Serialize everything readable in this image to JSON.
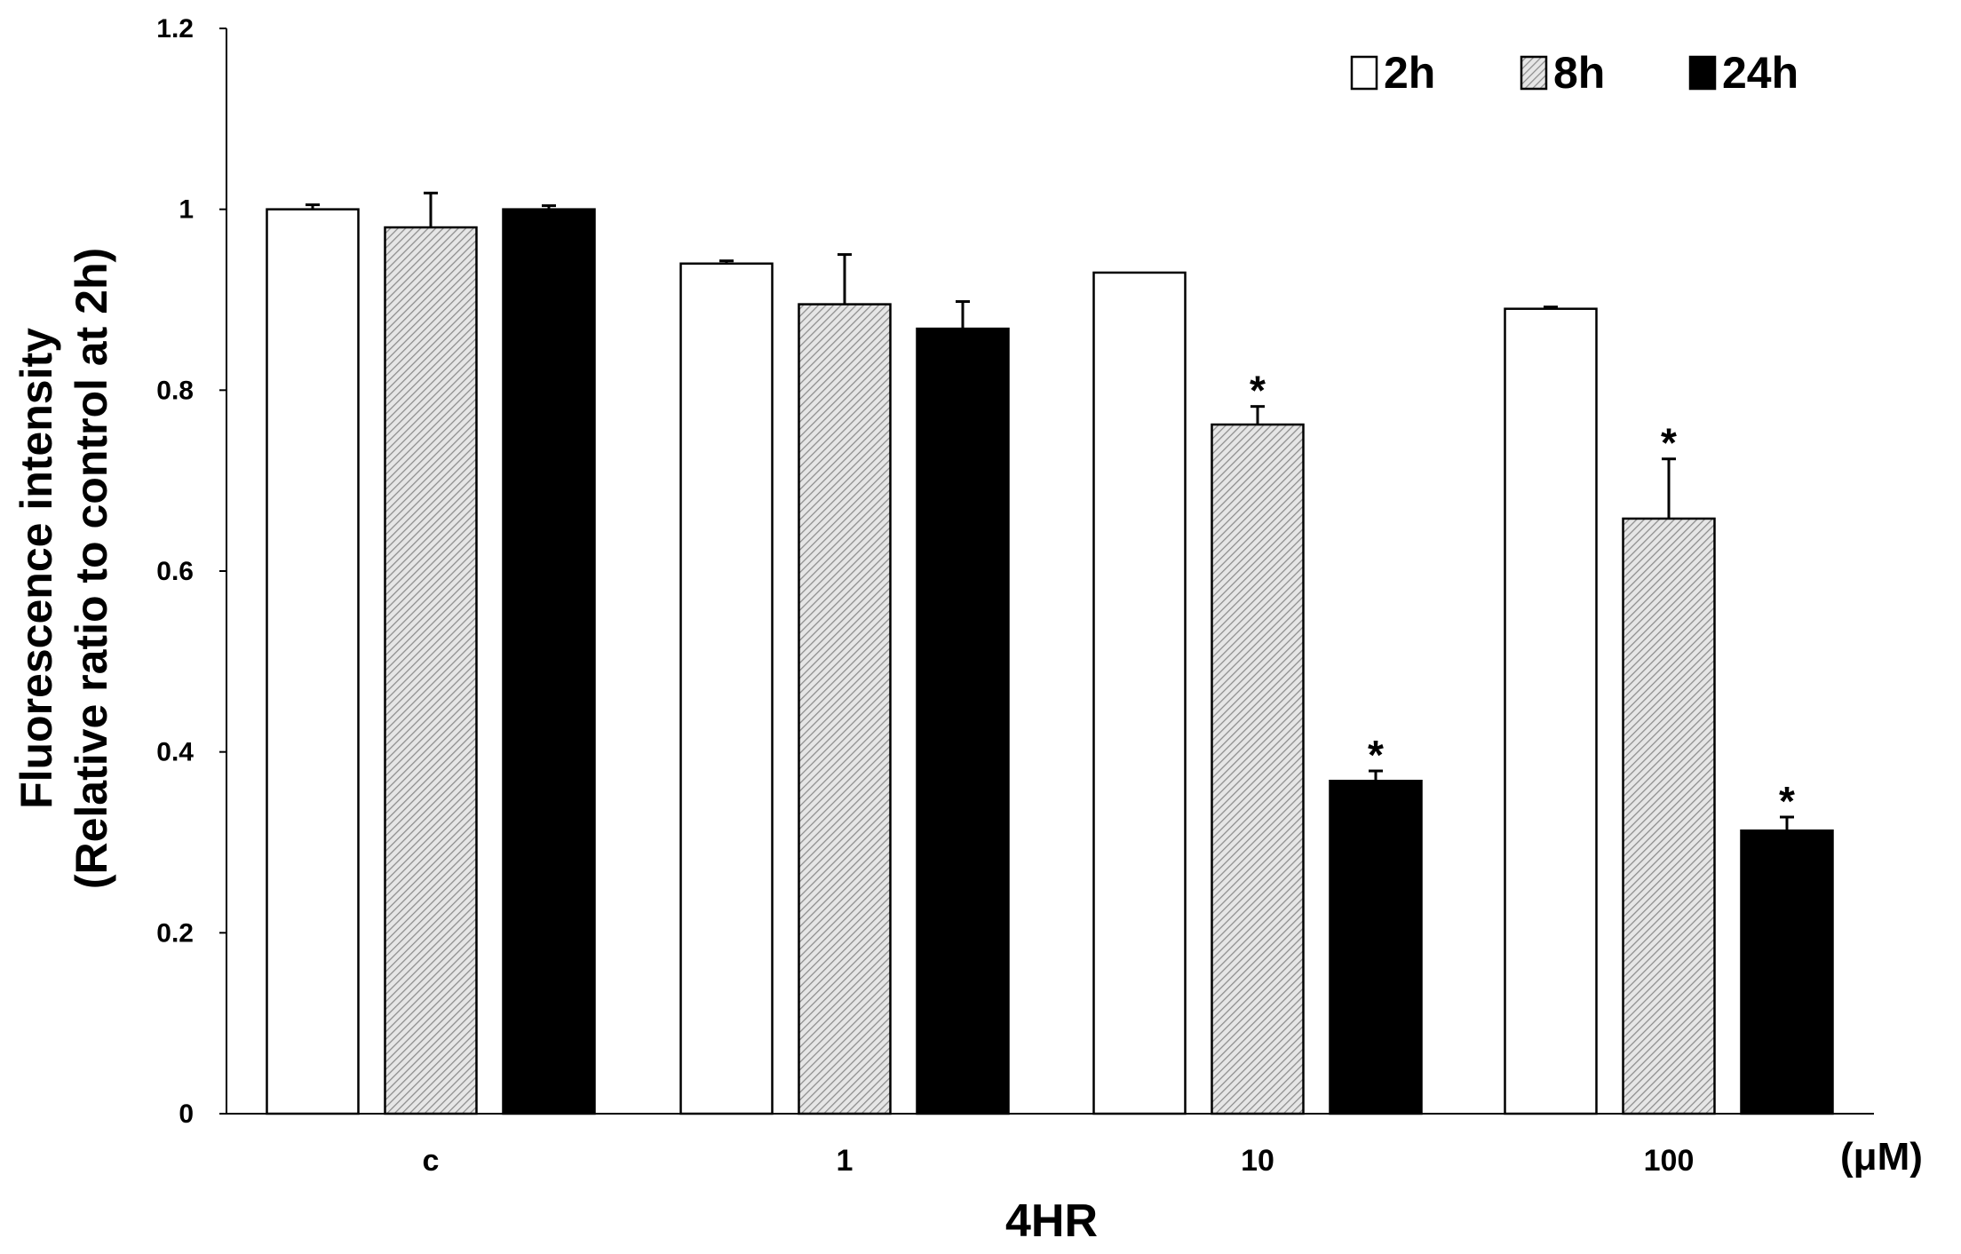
{
  "chart_data": {
    "type": "bar",
    "categories": [
      "c",
      "1",
      "10",
      "100"
    ],
    "unit_label": "(μM)",
    "xlabel": "4HR",
    "ylabel_line1": "Fluorescence intensity",
    "ylabel_line2": "(Relative ratio to control at 2h)",
    "ylim": [
      0,
      1.2
    ],
    "yticks": [
      "0",
      "0.2",
      "0.4",
      "0.6",
      "0.8",
      "1",
      "1.2"
    ],
    "ytick_values": [
      0,
      0.2,
      0.4,
      0.6,
      0.8,
      1.0,
      1.2
    ],
    "grid": false,
    "legend_position": "top-right",
    "series": [
      {
        "name": "2h",
        "fill": "white",
        "values": [
          1.0,
          0.94,
          0.93,
          0.89
        ],
        "errors": [
          0.005,
          0.003,
          0.0,
          0.002
        ],
        "significant": [
          false,
          false,
          false,
          false
        ]
      },
      {
        "name": "8h",
        "fill": "hatched",
        "values": [
          0.98,
          0.895,
          0.762,
          0.658
        ],
        "errors": [
          0.038,
          0.055,
          0.02,
          0.066
        ],
        "significant": [
          false,
          false,
          true,
          true
        ]
      },
      {
        "name": "24h",
        "fill": "black",
        "values": [
          1.0,
          0.868,
          0.368,
          0.313
        ],
        "errors": [
          0.004,
          0.03,
          0.011,
          0.015
        ],
        "significant": [
          false,
          false,
          true,
          true
        ]
      }
    ],
    "significance_marker": "*"
  },
  "colors": {
    "bar_white": "#ffffff",
    "bar_black": "#000000",
    "hatch_bg": "#e6e6e6",
    "hatch_line": "#8c8c8c",
    "axis": "#000000"
  }
}
